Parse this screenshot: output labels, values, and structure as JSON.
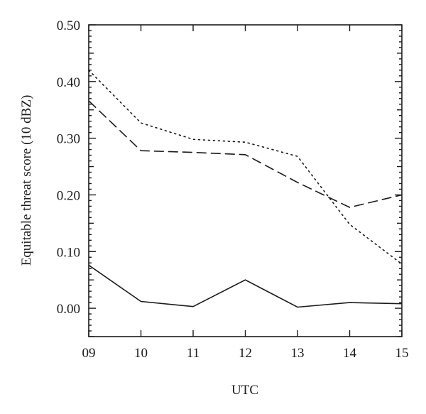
{
  "chart_data": {
    "type": "line",
    "xlabel": "UTC",
    "ylabel": "Equitable threat score (10 dBZ)",
    "x": [
      "09",
      "10",
      "11",
      "12",
      "13",
      "14",
      "15"
    ],
    "xlim": [
      9,
      15
    ],
    "ylim": [
      -0.05,
      0.5
    ],
    "yticks": [
      "0.00",
      "0.10",
      "0.20",
      "0.30",
      "0.40",
      "0.50"
    ],
    "grid": false,
    "series": [
      {
        "style": "dotted",
        "values": [
          0.42,
          0.327,
          0.298,
          0.293,
          0.268,
          0.148,
          0.078
        ]
      },
      {
        "style": "dashed",
        "values": [
          0.366,
          0.278,
          0.275,
          0.271,
          0.222,
          0.178,
          0.2
        ]
      },
      {
        "style": "solid",
        "values": [
          0.076,
          0.012,
          0.003,
          0.05,
          0.002,
          0.01,
          0.008
        ]
      }
    ]
  }
}
